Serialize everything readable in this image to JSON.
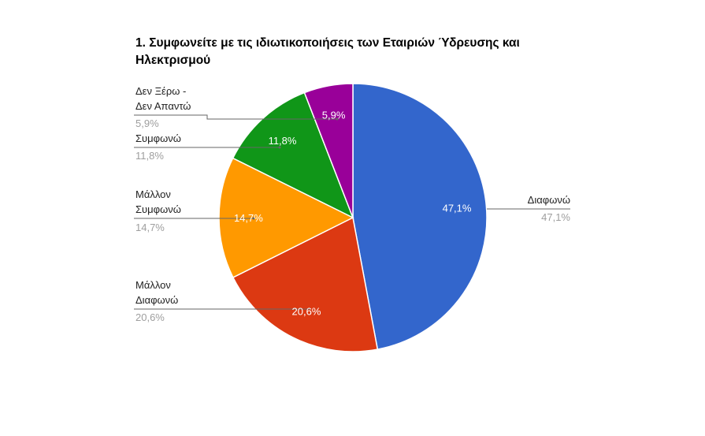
{
  "chart_data": {
    "type": "pie",
    "title": "1. Συμφωνείτε με τις ιδιωτικοποιήσεις των Εταιριών Ύδρευσης και Ηλεκτρισμού",
    "categories": [
      "Διαφωνώ",
      "Μάλλον Διαφωνώ",
      "Μάλλον Συμφωνώ",
      "Συμφωνώ",
      "Δεν Ξέρω - Δεν Απαντώ"
    ],
    "values": [
      47.1,
      20.6,
      14.7,
      11.8,
      5.9
    ],
    "value_labels": [
      "47,1%",
      "20,6%",
      "14,7%",
      "11,8%",
      "5,9%"
    ],
    "colors": [
      "#3366cc",
      "#dc3912",
      "#ff9900",
      "#109618",
      "#990099"
    ],
    "start_angle_deg": 0,
    "direction": "clockwise",
    "legend_position": "labeled"
  },
  "title_line1": "1. Συμφωνείτε με τις ιδιωτικοποιήσεις των Εταιριών Ύδρευσης και",
  "title_line2": "Ηλεκτρισμού",
  "labels": {
    "diafono": {
      "name": "Διαφωνώ",
      "pct": "47,1%"
    },
    "mallon_diafono": {
      "name1": "Μάλλον",
      "name2": "Διαφωνώ",
      "pct": "20,6%"
    },
    "mallon_symfono": {
      "name1": "Μάλλον",
      "name2": "Συμφωνώ",
      "pct": "14,7%"
    },
    "symfono": {
      "name": "Συμφωνώ",
      "pct": "11,8%"
    },
    "den_xero": {
      "name1": "Δεν Ξέρω -",
      "name2": "Δεν Απαντώ",
      "pct": "5,9%"
    }
  }
}
